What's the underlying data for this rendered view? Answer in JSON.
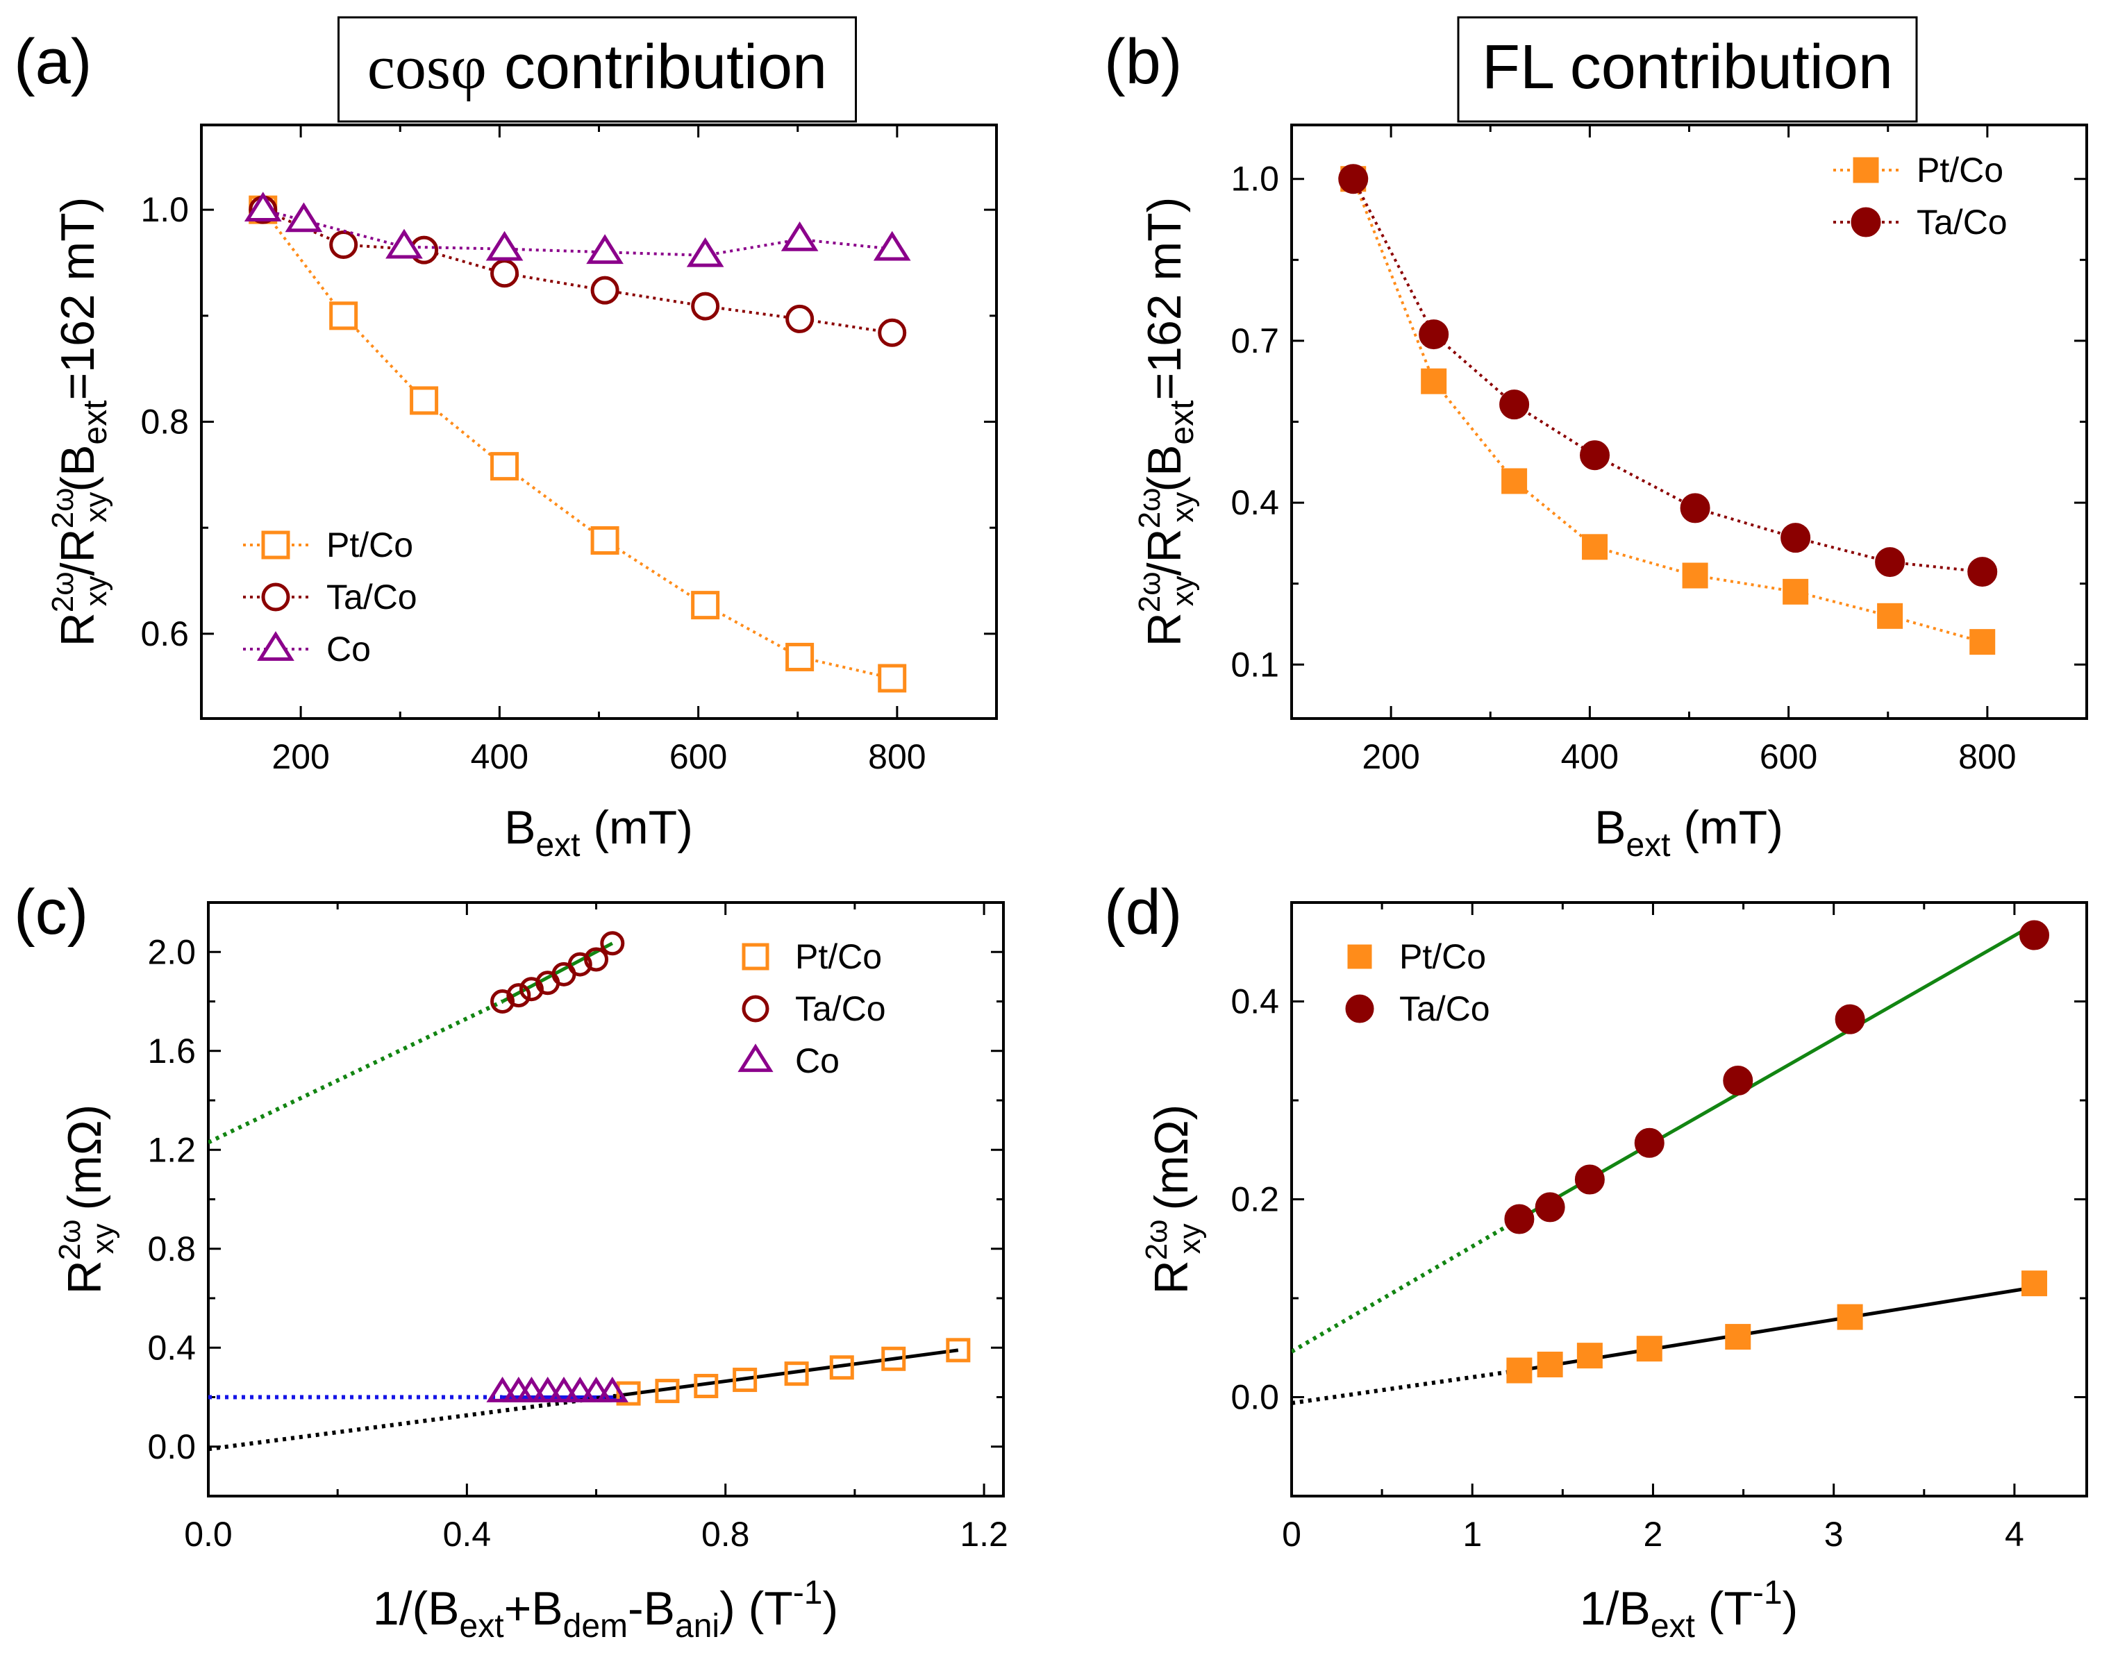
{
  "colors": {
    "ptco": "#FF8C1A",
    "taco": "#8B0000",
    "co": "#8B008B",
    "fit_green": "#128512",
    "fit_blue": "#1515E6",
    "fit_black": "#000000"
  },
  "chart_data": [
    {
      "id": "a",
      "type": "line",
      "panel_label": "(a)",
      "title_prefix": "cos",
      "title_symbol": "φ",
      "title_suffix": " contribution",
      "xlabel_main": "B",
      "xlabel_sub": "ext",
      "xlabel_tail": " (mT)",
      "ylabel": {
        "r1": "R",
        "r1_sup": "2ω",
        "r1_sub": "xy",
        "slash": "/",
        "r2": "R",
        "r2_sup": "2ω",
        "r2_sub": "xy",
        "open": "(B",
        "b_sub": "ext",
        "tail": "=162 mT)"
      },
      "xlim": [
        100,
        900
      ],
      "ylim": [
        0.52,
        1.08
      ],
      "xticks": [
        200,
        400,
        600,
        800
      ],
      "xtick_labels": [
        "200",
        "400",
        "600",
        "800"
      ],
      "yticks": [
        0.6,
        0.8,
        1.0
      ],
      "ytick_labels": [
        "0.6",
        "0.8",
        "1.0"
      ],
      "legend_position": "lower-left",
      "series": [
        {
          "name": "Pt/Co",
          "color_key": "ptco",
          "marker": "open-square",
          "x": [
            162,
            243,
            324,
            405,
            506,
            607,
            702,
            795
          ],
          "y": [
            1.0,
            0.9,
            0.82,
            0.758,
            0.688,
            0.627,
            0.578,
            0.558
          ]
        },
        {
          "name": "Ta/Co",
          "color_key": "taco",
          "marker": "open-circle",
          "x": [
            162,
            243,
            324,
            405,
            506,
            607,
            702,
            795
          ],
          "y": [
            1.0,
            0.967,
            0.962,
            0.94,
            0.924,
            0.909,
            0.897,
            0.884
          ]
        },
        {
          "name": "Co",
          "color_key": "co",
          "marker": "open-triangle",
          "x": [
            162,
            203,
            304,
            405,
            506,
            607,
            702,
            795
          ],
          "y": [
            1.0,
            0.99,
            0.965,
            0.963,
            0.96,
            0.957,
            0.972,
            0.963
          ]
        }
      ]
    },
    {
      "id": "b",
      "type": "line",
      "panel_label": "(b)",
      "title_text": "FL contribution",
      "xlabel_main": "B",
      "xlabel_sub": "ext",
      "xlabel_tail": " (mT)",
      "ylabel": {
        "r1": "R",
        "r1_sup": "2ω",
        "r1_sub": "xy",
        "slash": "/",
        "r2": "R",
        "r2_sup": "2ω",
        "r2_sub": "xy",
        "open": "(B",
        "b_sub": "ext",
        "tail": "=162 mT)"
      },
      "xlim": [
        100,
        900
      ],
      "ylim": [
        0.0,
        1.1
      ],
      "xticks": [
        200,
        400,
        600,
        800
      ],
      "xtick_labels": [
        "200",
        "400",
        "600",
        "800"
      ],
      "yticks": [
        0.1,
        0.4,
        0.7,
        1.0
      ],
      "ytick_labels": [
        "0.1",
        "0.4",
        "0.7",
        "1.0"
      ],
      "legend_position": "top-right",
      "series": [
        {
          "name": "Pt/Co",
          "color_key": "ptco",
          "marker": "filled-square",
          "x": [
            162,
            243,
            324,
            405,
            506,
            607,
            702,
            795
          ],
          "y": [
            1.0,
            0.625,
            0.44,
            0.318,
            0.265,
            0.235,
            0.19,
            0.142
          ]
        },
        {
          "name": "Ta/Co",
          "color_key": "taco",
          "marker": "filled-circle",
          "x": [
            162,
            243,
            324,
            405,
            506,
            607,
            702,
            795
          ],
          "y": [
            1.0,
            0.712,
            0.582,
            0.488,
            0.39,
            0.335,
            0.29,
            0.272
          ]
        }
      ]
    },
    {
      "id": "c",
      "type": "scatter",
      "panel_label": "(c)",
      "xlabel": {
        "p1": "1/(B",
        "s1": "ext",
        "p2": "+B",
        "s2": "dem",
        "p3": "-B",
        "s3": "ani",
        "p4": ") (T",
        "sup": "-1",
        "p5": ")"
      },
      "ylabel": {
        "r": "R",
        "sup": "2ω",
        "sub": "xy",
        "unit": " (mΩ)"
      },
      "xlim": [
        0.0,
        1.23
      ],
      "ylim": [
        -0.2,
        2.2
      ],
      "xticks": [
        0.0,
        0.4,
        0.8,
        1.2
      ],
      "xtick_labels": [
        "0.0",
        "0.4",
        "0.8",
        "1.2"
      ],
      "yticks": [
        0.0,
        0.4,
        0.8,
        1.2,
        1.6,
        2.0
      ],
      "ytick_labels": [
        "0.0",
        "0.4",
        "0.8",
        "1.2",
        "1.6",
        "2.0"
      ],
      "legend_position": "top-right",
      "series": [
        {
          "name": "Pt/Co",
          "color_key": "ptco",
          "marker": "open-square",
          "x": [
            0.65,
            0.71,
            0.77,
            0.83,
            0.91,
            0.98,
            1.06,
            1.16
          ],
          "y": [
            0.215,
            0.225,
            0.245,
            0.27,
            0.295,
            0.32,
            0.355,
            0.39
          ]
        },
        {
          "name": "Ta/Co",
          "color_key": "taco",
          "marker": "open-circle",
          "x": [
            0.455,
            0.48,
            0.5,
            0.525,
            0.55,
            0.575,
            0.6,
            0.625
          ],
          "y": [
            1.8,
            1.825,
            1.85,
            1.875,
            1.91,
            1.95,
            1.97,
            2.035
          ]
        },
        {
          "name": "Co",
          "color_key": "co",
          "marker": "open-triangle",
          "x": [
            0.455,
            0.48,
            0.5,
            0.525,
            0.55,
            0.575,
            0.6,
            0.625
          ],
          "y": [
            0.22,
            0.22,
            0.22,
            0.22,
            0.22,
            0.22,
            0.22,
            0.22
          ]
        }
      ],
      "fit_lines": [
        {
          "color_key": "fit_green",
          "style": "dotted",
          "x": [
            0.0,
            0.455
          ],
          "y": [
            1.23,
            1.8
          ]
        },
        {
          "color_key": "fit_green",
          "style": "solid",
          "x": [
            0.455,
            0.625
          ],
          "y": [
            1.8,
            2.035
          ]
        },
        {
          "color_key": "fit_blue",
          "style": "dotted",
          "x": [
            0.0,
            0.455
          ],
          "y": [
            0.2,
            0.2
          ]
        },
        {
          "color_key": "fit_blue",
          "style": "solid",
          "x": [
            0.455,
            0.64
          ],
          "y": [
            0.2,
            0.2
          ]
        },
        {
          "color_key": "fit_black",
          "style": "dotted",
          "x": [
            0.0,
            0.63
          ],
          "y": [
            -0.01,
            0.205
          ]
        },
        {
          "color_key": "fit_black",
          "style": "solid",
          "x": [
            0.63,
            1.16
          ],
          "y": [
            0.205,
            0.39
          ]
        }
      ]
    },
    {
      "id": "d",
      "type": "scatter",
      "panel_label": "(d)",
      "xlabel": {
        "p1": "1/B",
        "s1": "ext",
        "p2": " (T",
        "sup": "-1",
        "p3": ")"
      },
      "ylabel": {
        "r": "R",
        "sup": "2ω",
        "sub": "xy",
        "unit": " (mΩ)"
      },
      "xlim": [
        0.0,
        4.4
      ],
      "ylim": [
        -0.1,
        0.5
      ],
      "xticks": [
        0,
        1,
        2,
        3,
        4
      ],
      "xtick_labels": [
        "0",
        "1",
        "2",
        "3",
        "4"
      ],
      "yticks": [
        0.0,
        0.2,
        0.4
      ],
      "ytick_labels": [
        "0.0",
        "0.2",
        "0.4"
      ],
      "legend_position": "top-left",
      "series": [
        {
          "name": "Pt/Co",
          "color_key": "ptco",
          "marker": "filled-square",
          "x": [
            1.26,
            1.43,
            1.65,
            1.98,
            2.47,
            3.09,
            4.11
          ],
          "y": [
            0.027,
            0.033,
            0.042,
            0.049,
            0.061,
            0.081,
            0.115
          ]
        },
        {
          "name": "Ta/Co",
          "color_key": "taco",
          "marker": "filled-circle",
          "x": [
            1.26,
            1.43,
            1.65,
            1.98,
            2.47,
            3.09,
            4.11
          ],
          "y": [
            0.18,
            0.192,
            0.22,
            0.257,
            0.32,
            0.382,
            0.467
          ]
        }
      ],
      "fit_lines": [
        {
          "color_key": "fit_green",
          "style": "dotted",
          "x": [
            0.0,
            1.26
          ],
          "y": [
            0.046,
            0.18
          ]
        },
        {
          "color_key": "fit_green",
          "style": "solid",
          "x": [
            1.26,
            4.11
          ],
          "y": [
            0.18,
            0.478
          ]
        },
        {
          "color_key": "fit_black",
          "style": "dotted",
          "x": [
            0.0,
            1.26
          ],
          "y": [
            -0.006,
            0.027
          ]
        },
        {
          "color_key": "fit_black",
          "style": "solid",
          "x": [
            1.26,
            4.11
          ],
          "y": [
            0.027,
            0.111
          ]
        }
      ]
    }
  ]
}
